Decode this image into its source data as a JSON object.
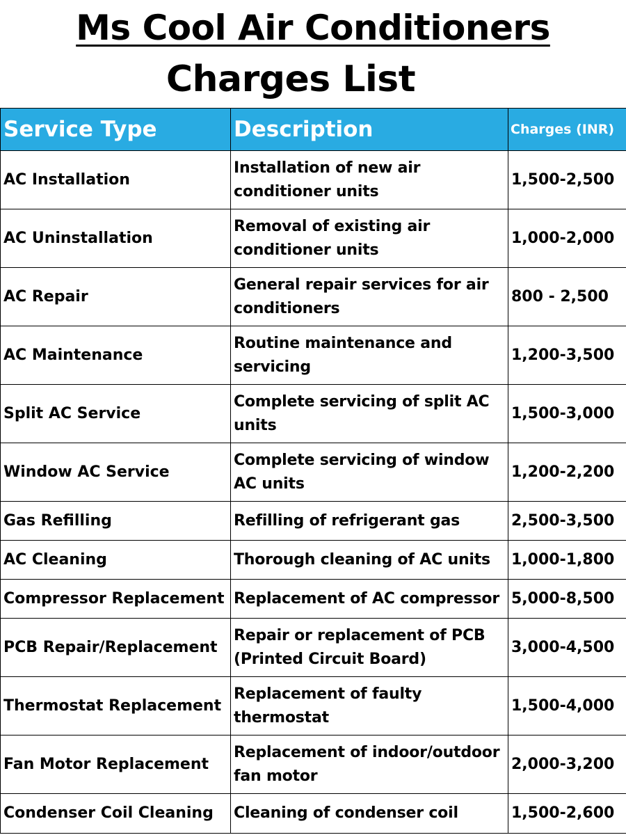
{
  "header": {
    "title": "Ms Cool Air Conditioners",
    "subtitle": "Charges List"
  },
  "table": {
    "columns": [
      "Service Type",
      "Description",
      "Charges (INR)"
    ],
    "rows": [
      {
        "service": "AC Installation",
        "description": "Installation of new air conditioner units",
        "charges": "1,500-2,500"
      },
      {
        "service": "AC Uninstallation",
        "description": "Removal of existing air conditioner units",
        "charges": "1,000-2,000"
      },
      {
        "service": "AC Repair",
        "description": "General repair services for air conditioners",
        "charges": "800 - 2,500"
      },
      {
        "service": "AC Maintenance",
        "description": "Routine maintenance and servicing",
        "charges": "1,200-3,500"
      },
      {
        "service": "Split AC Service",
        "description": "Complete servicing of split AC units",
        "charges": "1,500-3,000"
      },
      {
        "service": "Window AC Service",
        "description": "Complete servicing of window AC units",
        "charges": "1,200-2,200"
      },
      {
        "service": "Gas Refilling",
        "description": "Refilling of refrigerant gas",
        "charges": "2,500-3,500"
      },
      {
        "service": "AC Cleaning",
        "description": "Thorough cleaning of AC units",
        "charges": "1,000-1,800"
      },
      {
        "service": "Compressor Replacement",
        "description": "Replacement of AC compressor",
        "charges": "5,000-8,500"
      },
      {
        "service": "PCB Repair/Replacement",
        "description": "Repair or replacement of PCB (Printed Circuit Board)",
        "charges": "3,000-4,500"
      },
      {
        "service": "Thermostat Replacement",
        "description": "Replacement of faulty thermostat",
        "charges": "1,500-4,000"
      },
      {
        "service": "Fan Motor Replacement",
        "description": "Replacement of indoor/outdoor fan motor",
        "charges": "2,000-3,200"
      },
      {
        "service": "Condenser Coil Cleaning",
        "description": "Cleaning of condenser coil",
        "charges": "1,500-2,600"
      }
    ]
  },
  "colors": {
    "header_background": "#29abe2",
    "header_text": "#ffffff",
    "border": "#000000"
  }
}
